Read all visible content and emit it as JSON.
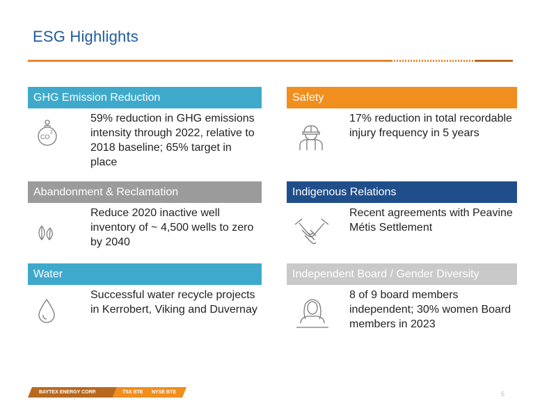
{
  "slide": {
    "title": "ESG Highlights",
    "page_number": "5"
  },
  "cards": [
    {
      "header": "GHG Emission Reduction",
      "icon": "co2-icon",
      "text": "59% reduction in GHG emissions intensity through 2022, relative to 2018 baseline; 65% target in place",
      "color": "#3fa9cc"
    },
    {
      "header": "Safety",
      "icon": "hardhat-worker-icon",
      "text": "17% reduction in total recordable injury frequency in 5 years",
      "color": "#f08e1e"
    },
    {
      "header": "Abandonment & Reclamation",
      "icon": "leaves-icon",
      "text": "Reduce 2020 inactive well inventory of ~ 4,500 wells to zero by 2040",
      "color": "#9b9b9b"
    },
    {
      "header": "Indigenous Relations",
      "icon": "handshake-icon",
      "text": "Recent agreements with Peavine Métis Settlement",
      "color": "#1f4e8a"
    },
    {
      "header": "Water",
      "icon": "water-drop-icon",
      "text": "Successful water recycle projects in Kerrobert, Viking and Duvernay",
      "color": "#3fa9cc"
    },
    {
      "header": "Independent Board / Gender Diversity",
      "icon": "woman-icon",
      "text": "8 of 9 board members independent; 30% women Board members in 2023",
      "color": "#c9c9c9"
    }
  ],
  "footer": {
    "company": "BAYTEX ENERGY CORP.",
    "tsx": "TSX BTE",
    "nyse": "NYSE BTE"
  }
}
